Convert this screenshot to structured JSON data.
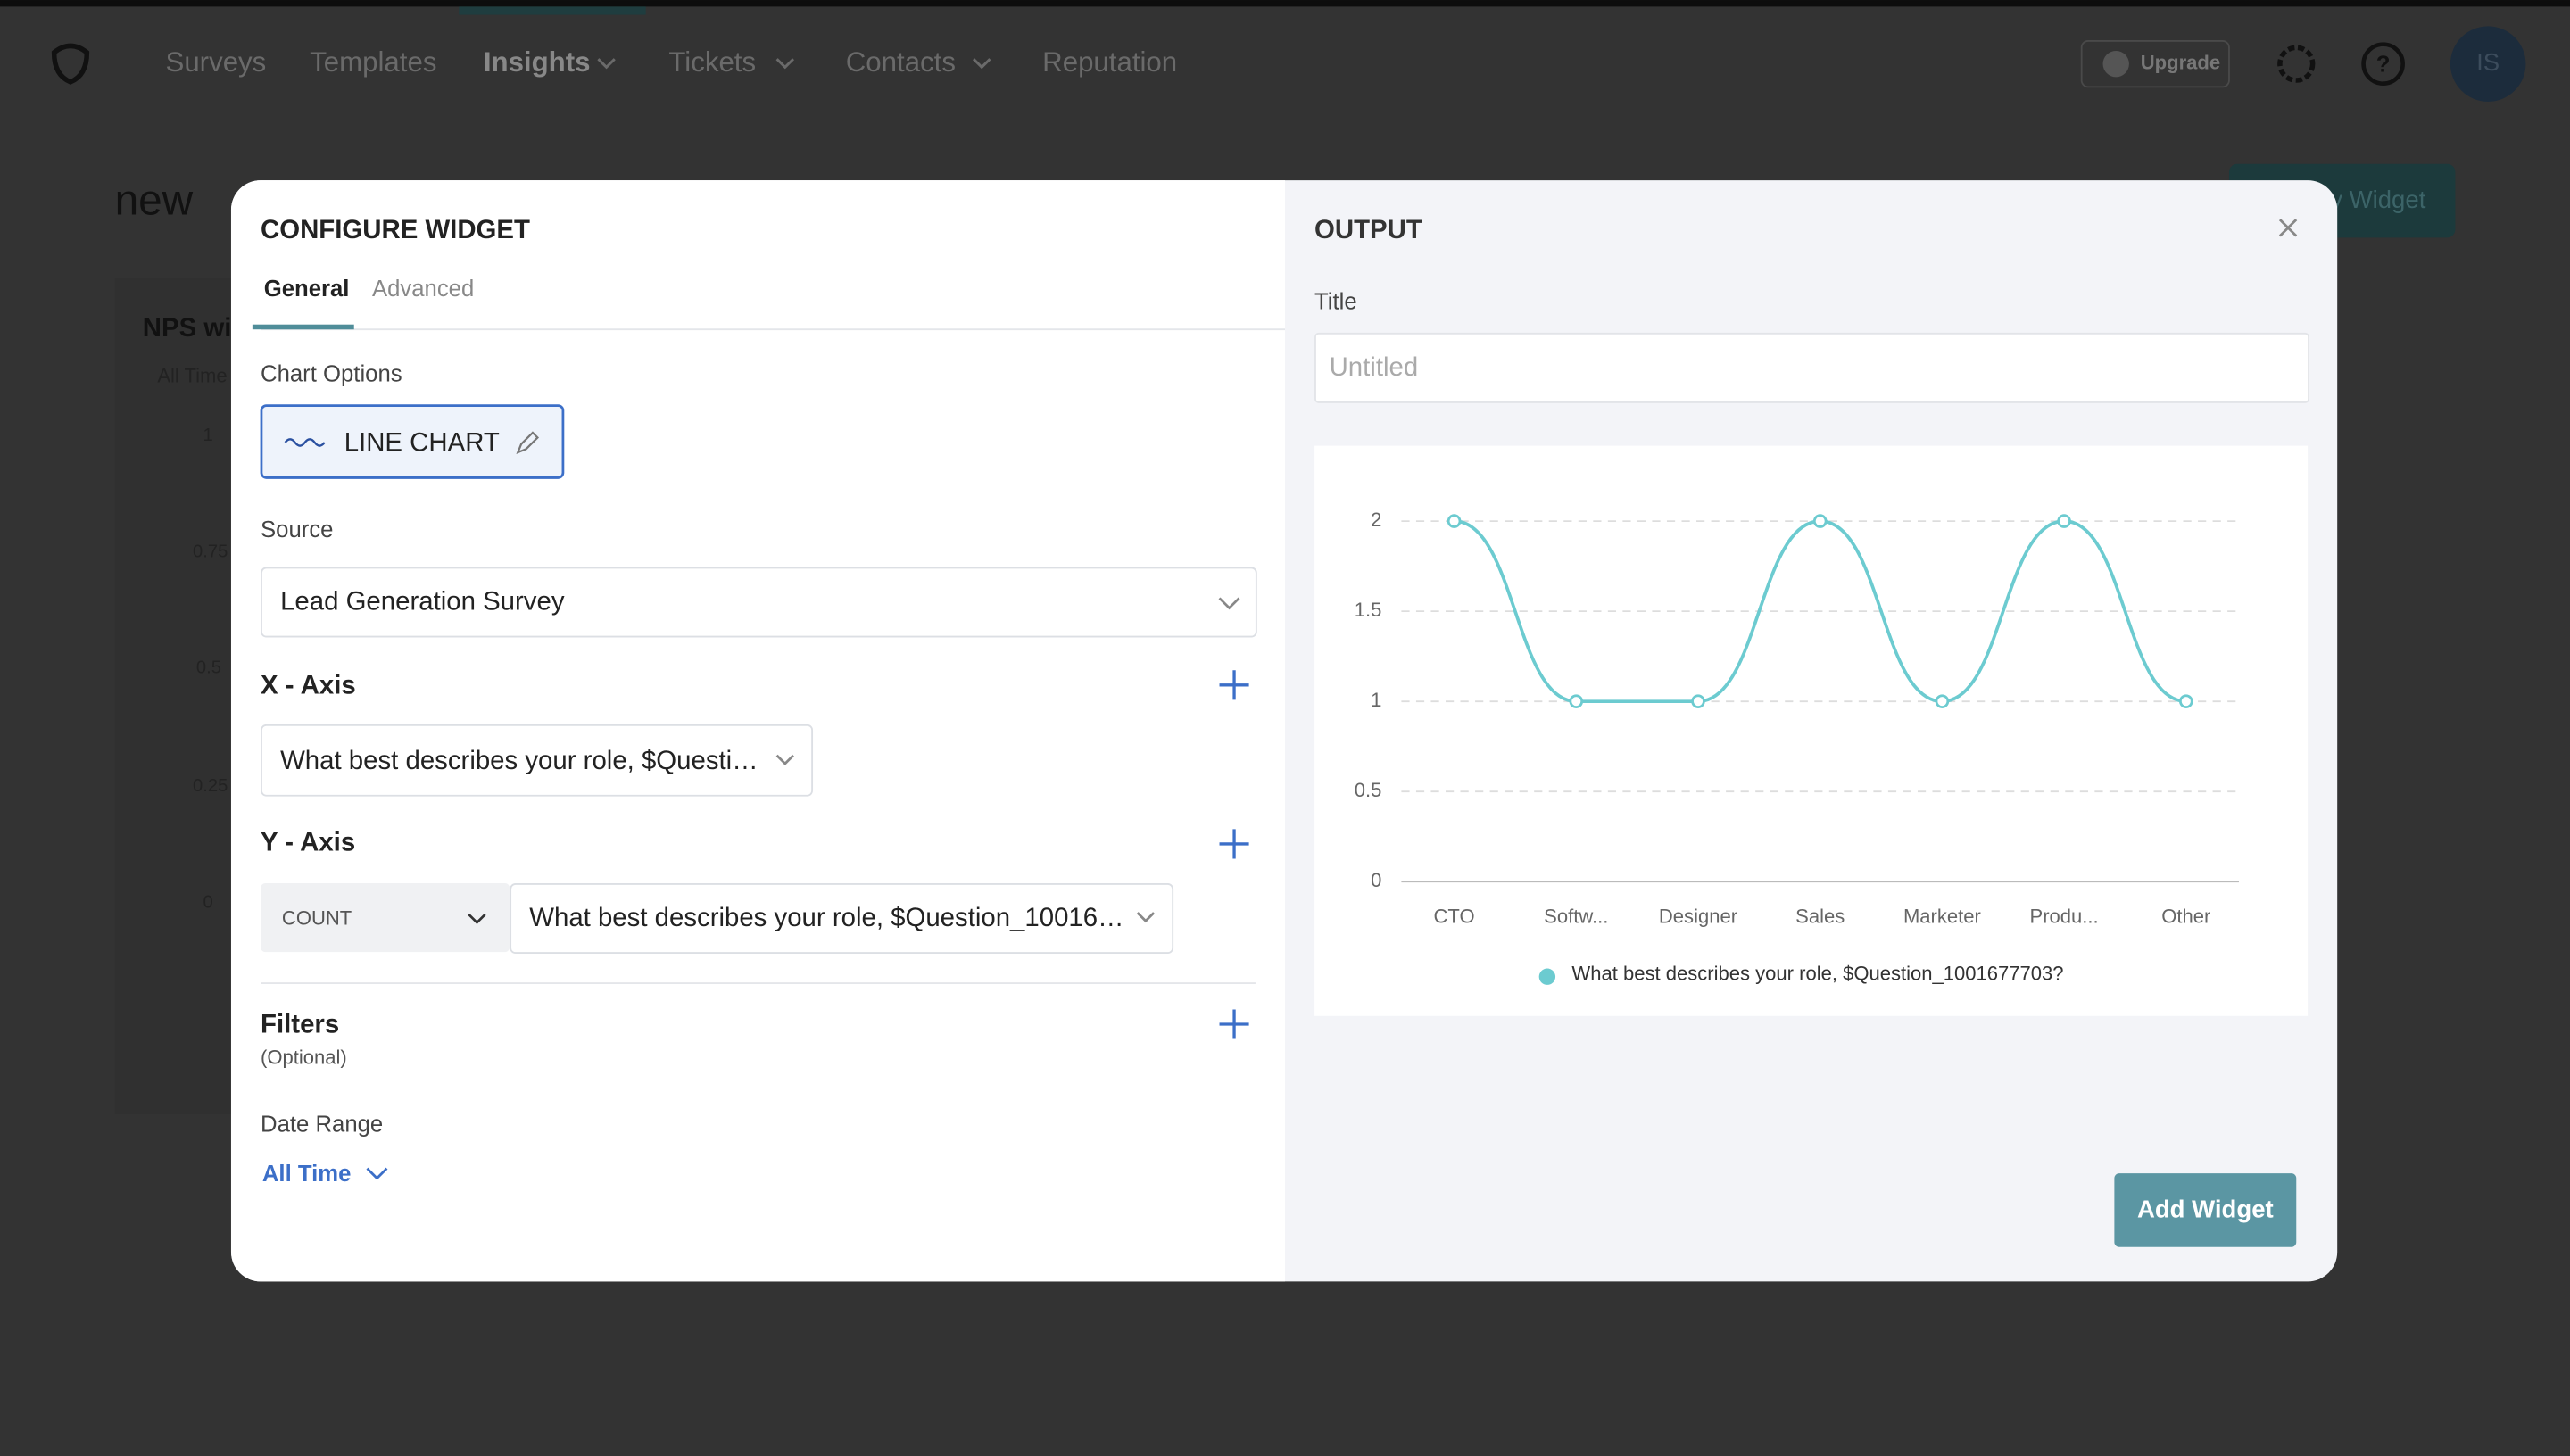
{
  "nav": {
    "items": [
      "Surveys",
      "Templates",
      "Insights",
      "Tickets",
      "Contacts",
      "Reputation"
    ],
    "upgrade": "Upgrade",
    "avatar": "IS"
  },
  "page": {
    "title": "new",
    "button": "y Widget",
    "widget_title": "NPS wi",
    "widget_range": "All Time",
    "widget_ticks": [
      "1",
      "0.75",
      "0.5",
      "0.25",
      "0"
    ]
  },
  "modal": {
    "heading": "CONFIGURE WIDGET",
    "tabs": [
      "General",
      "Advanced"
    ],
    "chart_options_label": "Chart Options",
    "chart_type": "LINE CHART",
    "source_label": "Source",
    "source": "Lead Generation Survey",
    "x_axis_label": "X - Axis",
    "x_axis_field": "What best describes your role, $Questi…",
    "y_axis_label": "Y - Axis",
    "y_aggregate": "COUNT",
    "y_axis_field": "What best describes your role, $Question_10016…",
    "filters_label": "Filters",
    "filters_note": "(Optional)",
    "date_range_label": "Date Range",
    "date_range": "All Time",
    "output_heading": "OUTPUT",
    "title_label": "Title",
    "title_placeholder": "Untitled",
    "add_button": "Add Widget"
  },
  "chart_data": {
    "type": "line",
    "categories": [
      "CTO",
      "Softw...",
      "Designer",
      "Sales",
      "Marketer",
      "Produ...",
      "Other"
    ],
    "series": [
      {
        "name": "What best describes your role, $Question_1001677703?",
        "color": "#6ccbd0",
        "values": [
          2,
          1,
          1,
          2,
          1,
          2,
          1
        ]
      }
    ],
    "ylim": [
      0,
      2
    ],
    "yticks": [
      0,
      0.5,
      1,
      1.5,
      2
    ],
    "grid": true
  }
}
